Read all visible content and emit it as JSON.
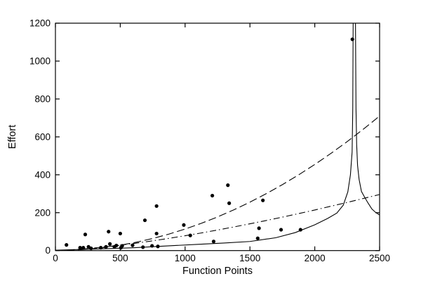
{
  "figure": {
    "background": "#ffffff",
    "axis_color": "#000000",
    "text_color": "#000000"
  },
  "chart_data": {
    "type": "scatter+line",
    "title": "",
    "xlabel": "Function Points",
    "ylabel": "Effort",
    "xlim": [
      0,
      2500
    ],
    "ylim": [
      0,
      1200
    ],
    "xticks": [
      0,
      500,
      1000,
      1500,
      2000,
      2500
    ],
    "yticks": [
      0,
      200,
      400,
      600,
      800,
      1000,
      1200
    ],
    "grid": false,
    "legend_position": "none",
    "box": true,
    "scatter": {
      "name": "project-effort-points",
      "marker": "filled-circle",
      "color": "#000000",
      "points": [
        [
          85,
          30
        ],
        [
          190,
          15
        ],
        [
          215,
          15
        ],
        [
          230,
          85
        ],
        [
          255,
          20
        ],
        [
          275,
          12
        ],
        [
          350,
          15
        ],
        [
          390,
          20
        ],
        [
          410,
          100
        ],
        [
          420,
          35
        ],
        [
          455,
          20
        ],
        [
          470,
          27
        ],
        [
          500,
          90
        ],
        [
          505,
          15
        ],
        [
          515,
          25
        ],
        [
          595,
          28
        ],
        [
          675,
          18
        ],
        [
          690,
          160
        ],
        [
          745,
          25
        ],
        [
          780,
          90
        ],
        [
          780,
          235
        ],
        [
          790,
          22
        ],
        [
          990,
          135
        ],
        [
          1040,
          80
        ],
        [
          1210,
          290
        ],
        [
          1220,
          48
        ],
        [
          1330,
          345
        ],
        [
          1340,
          250
        ],
        [
          1560,
          65
        ],
        [
          1570,
          118
        ],
        [
          1600,
          265
        ],
        [
          1740,
          110
        ],
        [
          1890,
          110
        ],
        [
          2290,
          1115
        ]
      ]
    },
    "curves": [
      {
        "name": "quadratic-model-curve",
        "linestyle": "dashed",
        "color": "#000000",
        "segments": [
          [
            [
              0,
              0
            ],
            [
              125,
              1.8
            ],
            [
              250,
              7.1
            ],
            [
              375,
              16.0
            ],
            [
              500,
              28.4
            ],
            [
              625,
              44.4
            ],
            [
              750,
              63.9
            ],
            [
              875,
              87.0
            ],
            [
              1000,
              113.6
            ],
            [
              1125,
              143.8
            ],
            [
              1250,
              177.5
            ],
            [
              1375,
              214.8
            ],
            [
              1500,
              255.6
            ],
            [
              1625,
              300.0
            ],
            [
              1750,
              347.9
            ],
            [
              1875,
              399.4
            ],
            [
              2000,
              454.4
            ],
            [
              2125,
              513.0
            ],
            [
              2250,
              575.1
            ],
            [
              2375,
              640.8
            ],
            [
              2500,
              710.0
            ]
          ]
        ]
      },
      {
        "name": "power-model-curve",
        "linestyle": "dashdot",
        "color": "#000000",
        "segments": [
          [
            [
              0,
              0
            ],
            [
              125,
              3.8
            ],
            [
              250,
              10.5
            ],
            [
              375,
              18.9
            ],
            [
              500,
              28.7
            ],
            [
              625,
              39.6
            ],
            [
              750,
              51.6
            ],
            [
              875,
              64.5
            ],
            [
              1000,
              78.4
            ],
            [
              1125,
              93.0
            ],
            [
              1250,
              108.5
            ],
            [
              1375,
              124.6
            ],
            [
              1500,
              141.3
            ],
            [
              1625,
              158.6
            ],
            [
              1750,
              176.5
            ],
            [
              1875,
              195.1
            ],
            [
              2000,
              214.1
            ],
            [
              2125,
              234.2
            ],
            [
              2250,
              254.1
            ],
            [
              2375,
              275.0
            ],
            [
              2500,
              296.0
            ]
          ]
        ]
      },
      {
        "name": "rational-model-curve-with-pole",
        "linestyle": "solid",
        "color": "#000000",
        "pole_x": 2305,
        "segments": [
          [
            [
              0,
              2
            ],
            [
              300,
              8
            ],
            [
              600,
              15
            ],
            [
              900,
              26
            ],
            [
              1100,
              33
            ],
            [
              1300,
              40
            ],
            [
              1500,
              48
            ],
            [
              1700,
              68
            ],
            [
              1850,
              95
            ],
            [
              2000,
              136
            ],
            [
              2100,
              170
            ],
            [
              2170,
              198
            ],
            [
              2220,
              240
            ],
            [
              2255,
              310
            ],
            [
              2275,
              400
            ],
            [
              2288,
              520
            ],
            [
              2293,
              750
            ],
            [
              2296,
              1200
            ]
          ],
          [
            [
              2314,
              1200
            ],
            [
              2318,
              750
            ],
            [
              2323,
              560
            ],
            [
              2330,
              450
            ],
            [
              2342,
              375
            ],
            [
              2360,
              312
            ],
            [
              2385,
              281
            ],
            [
              2410,
              252
            ],
            [
              2440,
              220
            ],
            [
              2470,
              201
            ],
            [
              2500,
              188
            ]
          ]
        ]
      }
    ]
  }
}
